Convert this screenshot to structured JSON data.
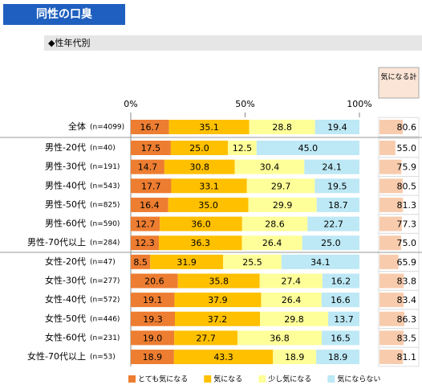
{
  "chart_data": {
    "type": "stacked_bar_100",
    "title": "同性の口臭",
    "subtitle": "◆性年代別",
    "categories": [
      "全体",
      "男性-20代",
      "男性-30代",
      "男性-40代",
      "男性-50代",
      "男性-60代",
      "男性-70代以上",
      "女性-20代",
      "女性-30代",
      "女性-40代",
      "女性-50代",
      "女性-60代",
      "女性-70代以上"
    ],
    "sample_sizes": [
      "(n=4099)",
      "(n=40)",
      "(n=191)",
      "(n=543)",
      "(n=825)",
      "(n=590)",
      "(n=284)",
      "(n=47)",
      "(n=277)",
      "(n=572)",
      "(n=446)",
      "(n=231)",
      "(n=53)"
    ],
    "xlim": [
      0,
      100
    ],
    "xticks": [
      {
        "value": 0,
        "label": "0%"
      },
      {
        "value": 50,
        "label": "50%"
      },
      {
        "value": 100,
        "label": "100%"
      }
    ],
    "series": [
      {
        "name": "とても気になる",
        "color": "#ed7d31",
        "values": [
          16.7,
          17.5,
          14.7,
          17.7,
          16.4,
          12.7,
          12.3,
          8.5,
          20.6,
          19.1,
          19.3,
          19.0,
          18.9
        ],
        "value_labels": [
          "16.7",
          "17.5",
          "14.7",
          "17.7",
          "16.4",
          "12.7",
          "12.3",
          "8.5",
          "20.6",
          "19.1",
          "19.3",
          "19.0",
          "18.9"
        ]
      },
      {
        "name": "気になる",
        "color": "#ffc000",
        "values": [
          35.1,
          25.0,
          30.8,
          33.1,
          35.0,
          36.0,
          36.3,
          31.9,
          35.8,
          37.9,
          37.2,
          27.7,
          43.3
        ],
        "value_labels": [
          "35.1",
          "25.0",
          "30.8",
          "33.1",
          "35.0",
          "36.0",
          "36.3",
          "31.9",
          "35.8",
          "37.9",
          "37.2",
          "27.7",
          "43.3"
        ]
      },
      {
        "name": "少し気になる",
        "color": "#ffff99",
        "values": [
          28.8,
          12.5,
          30.4,
          29.7,
          29.9,
          28.6,
          26.4,
          25.5,
          27.4,
          26.4,
          29.8,
          36.8,
          18.9
        ],
        "value_labels": [
          "28.8",
          "12.5",
          "30.4",
          "29.7",
          "29.9",
          "28.6",
          "26.4",
          "25.5",
          "27.4",
          "26.4",
          "29.8",
          "36.8",
          "18.9"
        ]
      },
      {
        "name": "気にならない",
        "color": "#bde8f5",
        "values": [
          19.4,
          45.0,
          24.1,
          19.5,
          18.7,
          22.7,
          25.0,
          34.1,
          16.2,
          16.6,
          13.7,
          16.5,
          18.9
        ],
        "value_labels": [
          "19.4",
          "45.0",
          "24.1",
          "19.5",
          "18.7",
          "22.7",
          "25.0",
          "34.1",
          "16.2",
          "16.6",
          "13.7",
          "16.5",
          "18.9"
        ]
      }
    ],
    "total": {
      "name": "気になる計",
      "color": "#f8cbad",
      "values": [
        80.6,
        55.0,
        75.9,
        80.5,
        81.3,
        77.3,
        75.0,
        65.9,
        83.8,
        83.4,
        86.3,
        83.5,
        81.1
      ],
      "value_labels": [
        "80.6",
        "55.0",
        "75.9",
        "80.5",
        "81.3",
        "77.3",
        "75.0",
        "65.9",
        "83.8",
        "83.4",
        "86.3",
        "83.5",
        "81.1"
      ]
    }
  }
}
